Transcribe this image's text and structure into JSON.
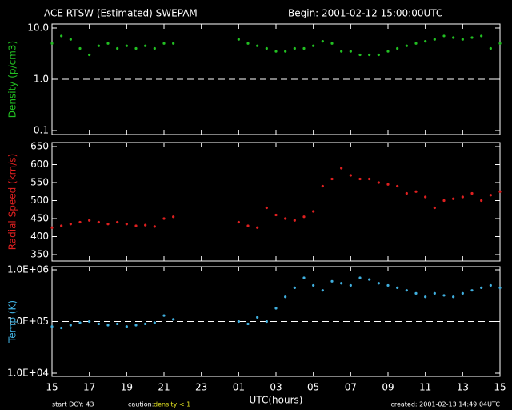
{
  "header": {
    "title": "ACE RTSW (Estimated) SWEPAM",
    "begin": "Begin: 2001-02-12 15:00:00UTC"
  },
  "footer": {
    "start": "start DOY:  43",
    "caution": "caution:",
    "caution_note": "density < 1",
    "created": "created: 2001-02-13 14:49:04UTC"
  },
  "chart_data": [
    {
      "type": "scatter",
      "ylabel": "Density (p/cm3)",
      "color": "#22c022",
      "log_y": true,
      "reference_line": 1,
      "xlim": [
        0,
        24
      ],
      "ylim": [
        0.1,
        10
      ],
      "yticks": [
        {
          "value": 10,
          "label": "10.0"
        },
        {
          "value": 1,
          "label": "1.0"
        },
        0.1
      ],
      "x": [
        0,
        0.5,
        1,
        1.5,
        2,
        2.5,
        3,
        3.5,
        4,
        4.5,
        5,
        5.5,
        6,
        6.5,
        7,
        7.5,
        8,
        8.5,
        9,
        9.5,
        10,
        10.5,
        11,
        11.5,
        12,
        12.5,
        13,
        13.5,
        14,
        14.5,
        15,
        15.5,
        16,
        16.5,
        17,
        17.5,
        18,
        18.5,
        19,
        19.5,
        20,
        20.5,
        21,
        21.5,
        22,
        22.5,
        23,
        23.5,
        24
      ],
      "values": [
        5,
        7,
        6,
        4,
        3,
        4.5,
        5,
        4,
        4.5,
        4,
        4.5,
        4,
        5,
        5,
        null,
        null,
        null,
        null,
        null,
        null,
        6,
        5,
        4.5,
        4,
        3.5,
        3.5,
        4,
        4,
        4.5,
        5.5,
        5,
        3.5,
        3.5,
        3,
        3,
        3,
        3.5,
        4,
        4.5,
        5,
        5.5,
        6,
        7,
        6.5,
        6,
        6.5,
        7,
        4,
        5
      ]
    },
    {
      "type": "scatter",
      "ylabel": "Radial Speed (km/s)",
      "color": "#e02020",
      "log_y": false,
      "xlim": [
        0,
        24
      ],
      "ylim": [
        350,
        650
      ],
      "yticks": [
        350,
        400,
        450,
        500,
        550,
        600,
        650
      ],
      "x": [
        0,
        0.5,
        1,
        1.5,
        2,
        2.5,
        3,
        3.5,
        4,
        4.5,
        5,
        5.5,
        6,
        6.5,
        7,
        7.5,
        8,
        8.5,
        9,
        9.5,
        10,
        10.5,
        11,
        11.5,
        12,
        12.5,
        13,
        13.5,
        14,
        14.5,
        15,
        15.5,
        16,
        16.5,
        17,
        17.5,
        18,
        18.5,
        19,
        19.5,
        20,
        20.5,
        21,
        21.5,
        22,
        22.5,
        23,
        23.5,
        24
      ],
      "values": [
        425,
        430,
        435,
        440,
        445,
        440,
        435,
        440,
        435,
        430,
        432,
        428,
        450,
        455,
        null,
        null,
        null,
        null,
        null,
        null,
        440,
        430,
        425,
        480,
        460,
        450,
        445,
        455,
        470,
        540,
        560,
        590,
        570,
        560,
        560,
        550,
        545,
        540,
        520,
        525,
        510,
        480,
        500,
        505,
        510,
        520,
        500,
        515,
        525
      ]
    },
    {
      "type": "scatter",
      "ylabel": "Temp (K)",
      "xlabel": "UTC(hours)",
      "color": "#40b0e0",
      "log_y": true,
      "reference_line": 100000,
      "xlim": [
        0,
        24
      ],
      "ylim": [
        10000,
        1000000
      ],
      "yticks": [
        {
          "value": 1000000,
          "label": "1.0E+06"
        },
        {
          "value": 100000,
          "label": "1.0E+05"
        },
        {
          "value": 10000,
          "label": "1.0E+04"
        }
      ],
      "xticks": [
        {
          "value": 0,
          "label": "15"
        },
        {
          "value": 2,
          "label": "17"
        },
        {
          "value": 4,
          "label": "19"
        },
        {
          "value": 6,
          "label": "21"
        },
        {
          "value": 8,
          "label": "23"
        },
        {
          "value": 10,
          "label": "01"
        },
        {
          "value": 12,
          "label": "03"
        },
        {
          "value": 14,
          "label": "05"
        },
        {
          "value": 16,
          "label": "07"
        },
        {
          "value": 18,
          "label": "09"
        },
        {
          "value": 20,
          "label": "11"
        },
        {
          "value": 22,
          "label": "13"
        },
        {
          "value": 24,
          "label": "15"
        }
      ],
      "x": [
        0,
        0.5,
        1,
        1.5,
        2,
        2.5,
        3,
        3.5,
        4,
        4.5,
        5,
        5.5,
        6,
        6.5,
        7,
        7.5,
        8,
        8.5,
        9,
        9.5,
        10,
        10.5,
        11,
        11.5,
        12,
        12.5,
        13,
        13.5,
        14,
        14.5,
        15,
        15.5,
        16,
        16.5,
        17,
        17.5,
        18,
        18.5,
        19,
        19.5,
        20,
        20.5,
        21,
        21.5,
        22,
        22.5,
        23,
        23.5,
        24
      ],
      "values": [
        80000,
        75000,
        85000,
        95000,
        100000,
        90000,
        85000,
        90000,
        80000,
        85000,
        90000,
        95000,
        130000,
        110000,
        null,
        null,
        null,
        null,
        null,
        null,
        100000,
        90000,
        120000,
        100000,
        180000,
        300000,
        450000,
        700000,
        500000,
        400000,
        600000,
        550000,
        500000,
        700000,
        650000,
        550000,
        500000,
        450000,
        400000,
        350000,
        300000,
        350000,
        320000,
        300000,
        350000,
        400000,
        450000,
        500000,
        450000
      ]
    }
  ]
}
